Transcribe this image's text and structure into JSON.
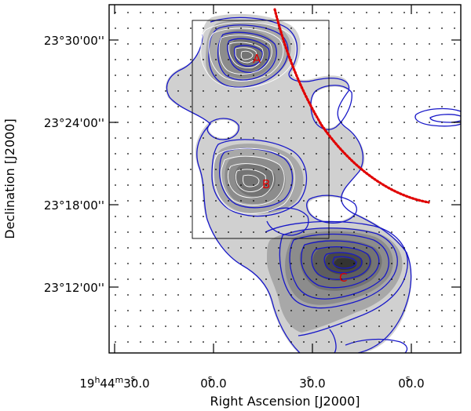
{
  "chart_data": {
    "type": "contour",
    "xlabel": "Right Ascension [J2000]",
    "ylabel": "Declination [J2000]",
    "x_ticks": [
      {
        "pre": "19",
        "h": "h",
        "mid": "44",
        "m": "m",
        "post": "30.0",
        "s": "s"
      },
      {
        "pre": "",
        "h": "",
        "mid": "",
        "m": "",
        "post": "00.0",
        "s": "s"
      },
      {
        "pre": "",
        "h": "",
        "mid": "",
        "m": "",
        "post": "30.0",
        "s": "s"
      },
      {
        "pre": "",
        "h": "",
        "mid": "",
        "m": "",
        "post": "00.0",
        "s": "s"
      }
    ],
    "y_ticks": [
      "23°30'00''",
      "23°24'00''",
      "23°18'00''",
      "23°12'00''"
    ],
    "markers": [
      "A",
      "B",
      "C"
    ],
    "colors": {
      "grayscale": [
        "#d0d0d0",
        "#a8a8a8",
        "#8c8c8c",
        "#747474",
        "#5e5e5e",
        "#474747",
        "#333333"
      ],
      "blue_contours": "#1818c8",
      "white_contours": "#ffffff",
      "arc": "#e00000",
      "markers": "#e00000"
    }
  }
}
